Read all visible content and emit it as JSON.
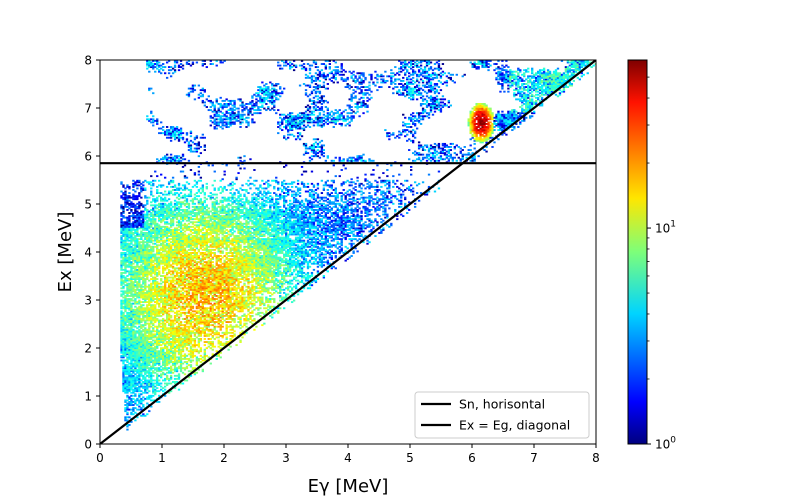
{
  "chart_data": {
    "type": "heatmap",
    "title": "",
    "xlabel": "Eγ [MeV]",
    "ylabel": "Ex [MeV]",
    "xlim": [
      0,
      8
    ],
    "ylim": [
      0,
      8
    ],
    "xticks": [
      "0",
      "1",
      "2",
      "3",
      "4",
      "5",
      "6",
      "7",
      "8"
    ],
    "yticks": [
      "0",
      "1",
      "2",
      "3",
      "4",
      "5",
      "6",
      "7",
      "8"
    ],
    "colorbar": {
      "scale": "log",
      "colormap": "jet",
      "range": [
        1,
        60
      ],
      "tick_labels": [
        {
          "value": 1,
          "base": "10",
          "exp": "0"
        },
        {
          "value": 10,
          "base": "10",
          "exp": "1"
        }
      ]
    },
    "lines": [
      {
        "name": "Sn, horisontal",
        "type": "horizontal",
        "y": 5.85,
        "color": "#000000"
      },
      {
        "name": "Ex = Eg, diagonal",
        "type": "diagonal",
        "x": [
          0,
          8
        ],
        "y": [
          0,
          8
        ],
        "color": "#000000"
      }
    ],
    "regions": {
      "triangle_band": {
        "ex_min": 0.3,
        "ex_max": 5.5,
        "egamma_min": 0.3,
        "note": "counts concentrated at Eγ 1–3 MeV, Ex 1.5–5 MeV, values ~3–20"
      },
      "upper_band": {
        "ex_min": 5.9,
        "ex_max": 8.0,
        "level": "sparse, ~1–5 counts"
      },
      "peak": {
        "egamma": 6.15,
        "ex": 6.7,
        "max_count": 55
      }
    },
    "grid": false,
    "legend_position": "lower right"
  }
}
